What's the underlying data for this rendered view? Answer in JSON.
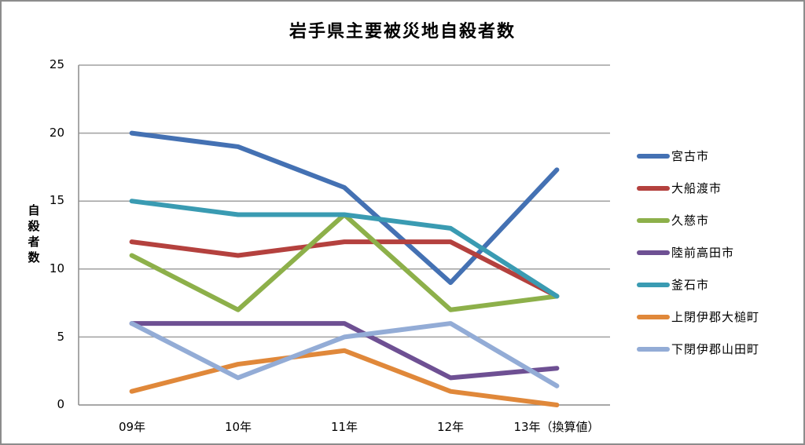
{
  "chart_data": {
    "type": "line",
    "title": "岩手県主要被災地自殺者数",
    "xlabel": "",
    "ylabel": "自殺者数",
    "ylim": [
      0,
      25
    ],
    "yticks": [
      0,
      5,
      10,
      15,
      20,
      25
    ],
    "grid": true,
    "legend_position": "right",
    "categories": [
      "09年",
      "10年",
      "11年",
      "12年",
      "13年（換算値）"
    ],
    "series": [
      {
        "name": "宮古市",
        "color": "#4471b3",
        "values": [
          20,
          19,
          16,
          9,
          17.3
        ]
      },
      {
        "name": "大船渡市",
        "color": "#b4413e",
        "values": [
          12,
          11,
          12,
          12,
          8
        ]
      },
      {
        "name": "久慈市",
        "color": "#8db04a",
        "values": [
          11,
          7,
          14,
          7,
          8
        ]
      },
      {
        "name": "陸前高田市",
        "color": "#6e5093",
        "values": [
          6,
          6,
          6,
          2,
          2.7
        ]
      },
      {
        "name": "釜石市",
        "color": "#3a9bb2",
        "values": [
          15,
          14,
          14,
          13,
          8
        ]
      },
      {
        "name": "上閉伊郡大槌町",
        "color": "#e0883a",
        "values": [
          1,
          3,
          4,
          1,
          0
        ]
      },
      {
        "name": "下閉伊郡山田町",
        "color": "#93acd6",
        "values": [
          6,
          2,
          5,
          6,
          1.4
        ]
      }
    ]
  },
  "title": "岩手県主要被災地自殺者数",
  "y_axis": {
    "label": "自殺者数",
    "ticks": [
      "0",
      "5",
      "10",
      "15",
      "20",
      "25"
    ]
  },
  "x_axis": {
    "ticks": [
      "09年",
      "10年",
      "11年",
      "12年",
      "13年（換算値）"
    ]
  },
  "legend": {
    "items": [
      {
        "label": "宮古市",
        "color": "#4471b3"
      },
      {
        "label": "大船渡市",
        "color": "#b4413e"
      },
      {
        "label": "久慈市",
        "color": "#8db04a"
      },
      {
        "label": "陸前高田市",
        "color": "#6e5093"
      },
      {
        "label": "釜石市",
        "color": "#3a9bb2"
      },
      {
        "label": "上閉伊郡大槌町",
        "color": "#e0883a"
      },
      {
        "label": "下閉伊郡山田町",
        "color": "#93acd6"
      }
    ]
  }
}
